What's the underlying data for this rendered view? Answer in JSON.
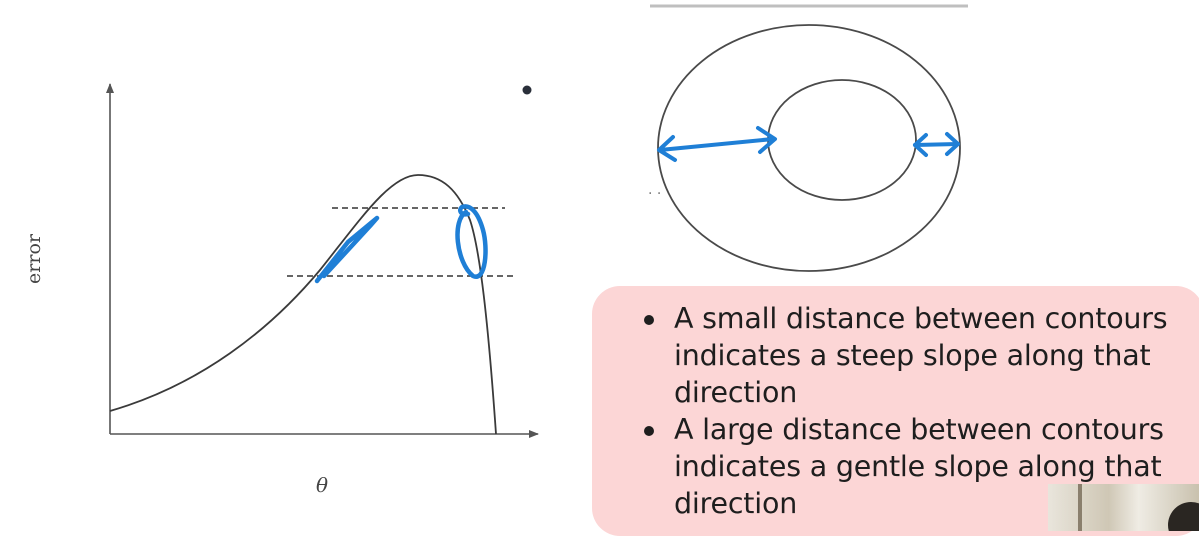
{
  "left_plot": {
    "ylabel": "error",
    "xlabel": "θ"
  },
  "callout": {
    "bullets": [
      {
        "lines": [
          "A small distance between contours",
          "indicates a steep slope along that",
          "direction"
        ]
      },
      {
        "lines": [
          "A large distance between contours",
          "indicates a gentle slope along that",
          "direction"
        ]
      }
    ]
  },
  "colors": {
    "ink": "#444444",
    "annotation": "#1f7fd6",
    "callout_bg": "#fcd6d6"
  }
}
